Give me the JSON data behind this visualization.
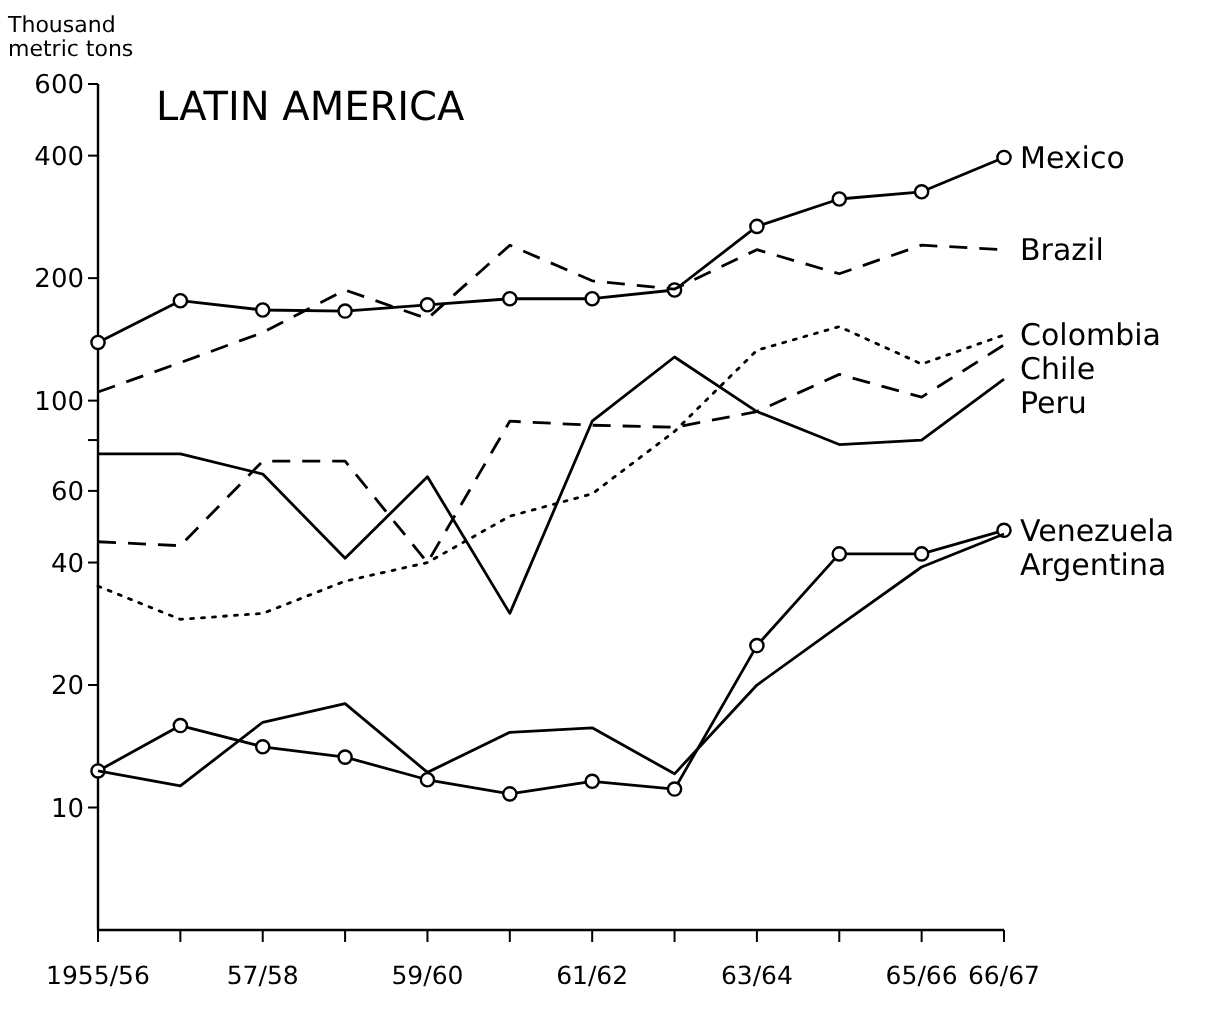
{
  "chart_data": {
    "type": "line",
    "title": "LATIN AMERICA",
    "ylabel": "Thousand metric tons",
    "categories": [
      "1955/56",
      null,
      "57/58",
      null,
      "59/60",
      null,
      "61/62",
      null,
      "63/64",
      null,
      "65/66",
      "66/67"
    ],
    "log": true,
    "ylim": [
      5,
      600
    ],
    "yticks": [
      10,
      20,
      40,
      60,
      {
        "value": 80,
        "label": null
      },
      100,
      200,
      400,
      600
    ],
    "grid": false,
    "legend": false,
    "series": [
      {
        "name": "Mexico",
        "color": "#000000",
        "line_style": "solid",
        "marker": "circle",
        "values": [
          139,
          176,
          167,
          166,
          172,
          178,
          178,
          187,
          268,
          313,
          326,
          396
        ]
      },
      {
        "name": "Brazil",
        "color": "#000000",
        "line_style": "dashed",
        "marker": "none",
        "values": [
          105,
          124,
          147,
          187,
          159,
          241,
          197,
          188,
          235,
          205,
          241,
          235
        ]
      },
      {
        "name": "Colombia",
        "color": "#000000",
        "line_style": "dotted",
        "marker": "none",
        "values": [
          35,
          29,
          30,
          36,
          40,
          52,
          59,
          84,
          133,
          152,
          123,
          145
        ]
      },
      {
        "name": "Chile",
        "color": "#000000",
        "line_style": "dashed",
        "marker": "none",
        "values": [
          45,
          44,
          71,
          71,
          40,
          89,
          87,
          86,
          94,
          116,
          102,
          137
        ]
      },
      {
        "name": "Peru",
        "color": "#000000",
        "line_style": "solid",
        "marker": "none",
        "values": [
          74,
          74,
          66,
          41,
          65,
          30,
          89,
          128,
          94,
          78,
          80,
          113
        ]
      },
      {
        "name": "Venezuela",
        "color": "#000000",
        "line_style": "solid",
        "marker": "circle",
        "values": [
          12.3,
          15.9,
          14.1,
          13.3,
          11.7,
          10.8,
          11.6,
          11.1,
          25,
          42,
          42,
          48
        ]
      },
      {
        "name": "Argentina",
        "color": "#000000",
        "line_style": "solid",
        "marker": "none",
        "values": [
          12.3,
          11.3,
          16.2,
          18,
          12.2,
          15.3,
          15.7,
          12.1,
          20,
          28,
          39,
          47
        ]
      }
    ]
  }
}
